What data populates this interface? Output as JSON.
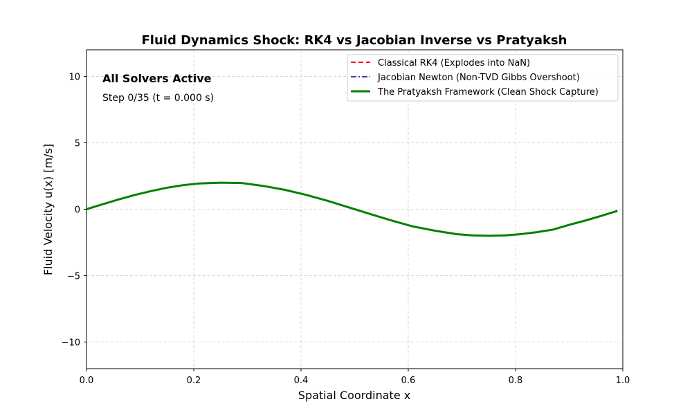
{
  "chart_data": {
    "type": "line",
    "title": "Fluid Dynamics Shock: RK4 vs Jacobian Inverse vs Pratyaksh",
    "xlabel": "Spatial Coordinate x",
    "ylabel": "Fluid Velocity u(x) [m/s]",
    "xlim": [
      0.0,
      1.0
    ],
    "ylim": [
      -12,
      12
    ],
    "xticks": [
      0.0,
      0.2,
      0.4,
      0.6,
      0.8,
      1.0
    ],
    "xtick_labels": [
      "0.0",
      "0.2",
      "0.4",
      "0.6",
      "0.8",
      "1.0"
    ],
    "yticks": [
      -10,
      -5,
      0,
      5,
      10
    ],
    "ytick_labels": [
      "−10",
      "−5",
      "0",
      "5",
      "10"
    ],
    "grid": true,
    "legend_position": "top-right",
    "annotations": {
      "status": "All Solvers Active",
      "step": "Step 0/35 (t = 0.000 s)"
    },
    "x": [
      0.0,
      0.03,
      0.06,
      0.09,
      0.12,
      0.15,
      0.18,
      0.21,
      0.25,
      0.29,
      0.33,
      0.37,
      0.41,
      0.45,
      0.49,
      0.53,
      0.57,
      0.61,
      0.65,
      0.69,
      0.72,
      0.75,
      0.78,
      0.81,
      0.84,
      0.87,
      0.9,
      0.93,
      0.96,
      0.99
    ],
    "series": [
      {
        "name": "Classical RK4 (Explodes into NaN)",
        "color": "#ff0000",
        "style": "dashed",
        "values": [
          0.0,
          0.375,
          0.737,
          1.071,
          1.364,
          1.618,
          1.812,
          1.937,
          2.0,
          1.969,
          1.752,
          1.457,
          1.075,
          0.626,
          0.126,
          -0.375,
          -0.863,
          -1.309,
          -1.618,
          -1.876,
          -1.969,
          -2.0,
          -1.969,
          -1.876,
          -1.726,
          -1.532,
          -1.176,
          -0.852,
          -0.5,
          -0.126
        ]
      },
      {
        "name": "Jacobian Newton (Non-TVD Gibbs Overshoot)",
        "color": "#00008b",
        "style": "dashdot",
        "values": [
          0.0,
          0.375,
          0.737,
          1.071,
          1.364,
          1.618,
          1.812,
          1.937,
          2.0,
          1.969,
          1.752,
          1.457,
          1.075,
          0.626,
          0.126,
          -0.375,
          -0.863,
          -1.309,
          -1.618,
          -1.876,
          -1.969,
          -2.0,
          -1.969,
          -1.876,
          -1.726,
          -1.532,
          -1.176,
          -0.852,
          -0.5,
          -0.126
        ]
      },
      {
        "name": "The Pratyaksh Framework (Clean Shock Capture)",
        "color": "#008000",
        "style": "solid",
        "values": [
          0.0,
          0.375,
          0.737,
          1.071,
          1.364,
          1.618,
          1.812,
          1.937,
          2.0,
          1.969,
          1.752,
          1.457,
          1.075,
          0.626,
          0.126,
          -0.375,
          -0.863,
          -1.309,
          -1.618,
          -1.876,
          -1.969,
          -2.0,
          -1.969,
          -1.876,
          -1.726,
          -1.532,
          -1.176,
          -0.852,
          -0.5,
          -0.126
        ]
      }
    ]
  }
}
